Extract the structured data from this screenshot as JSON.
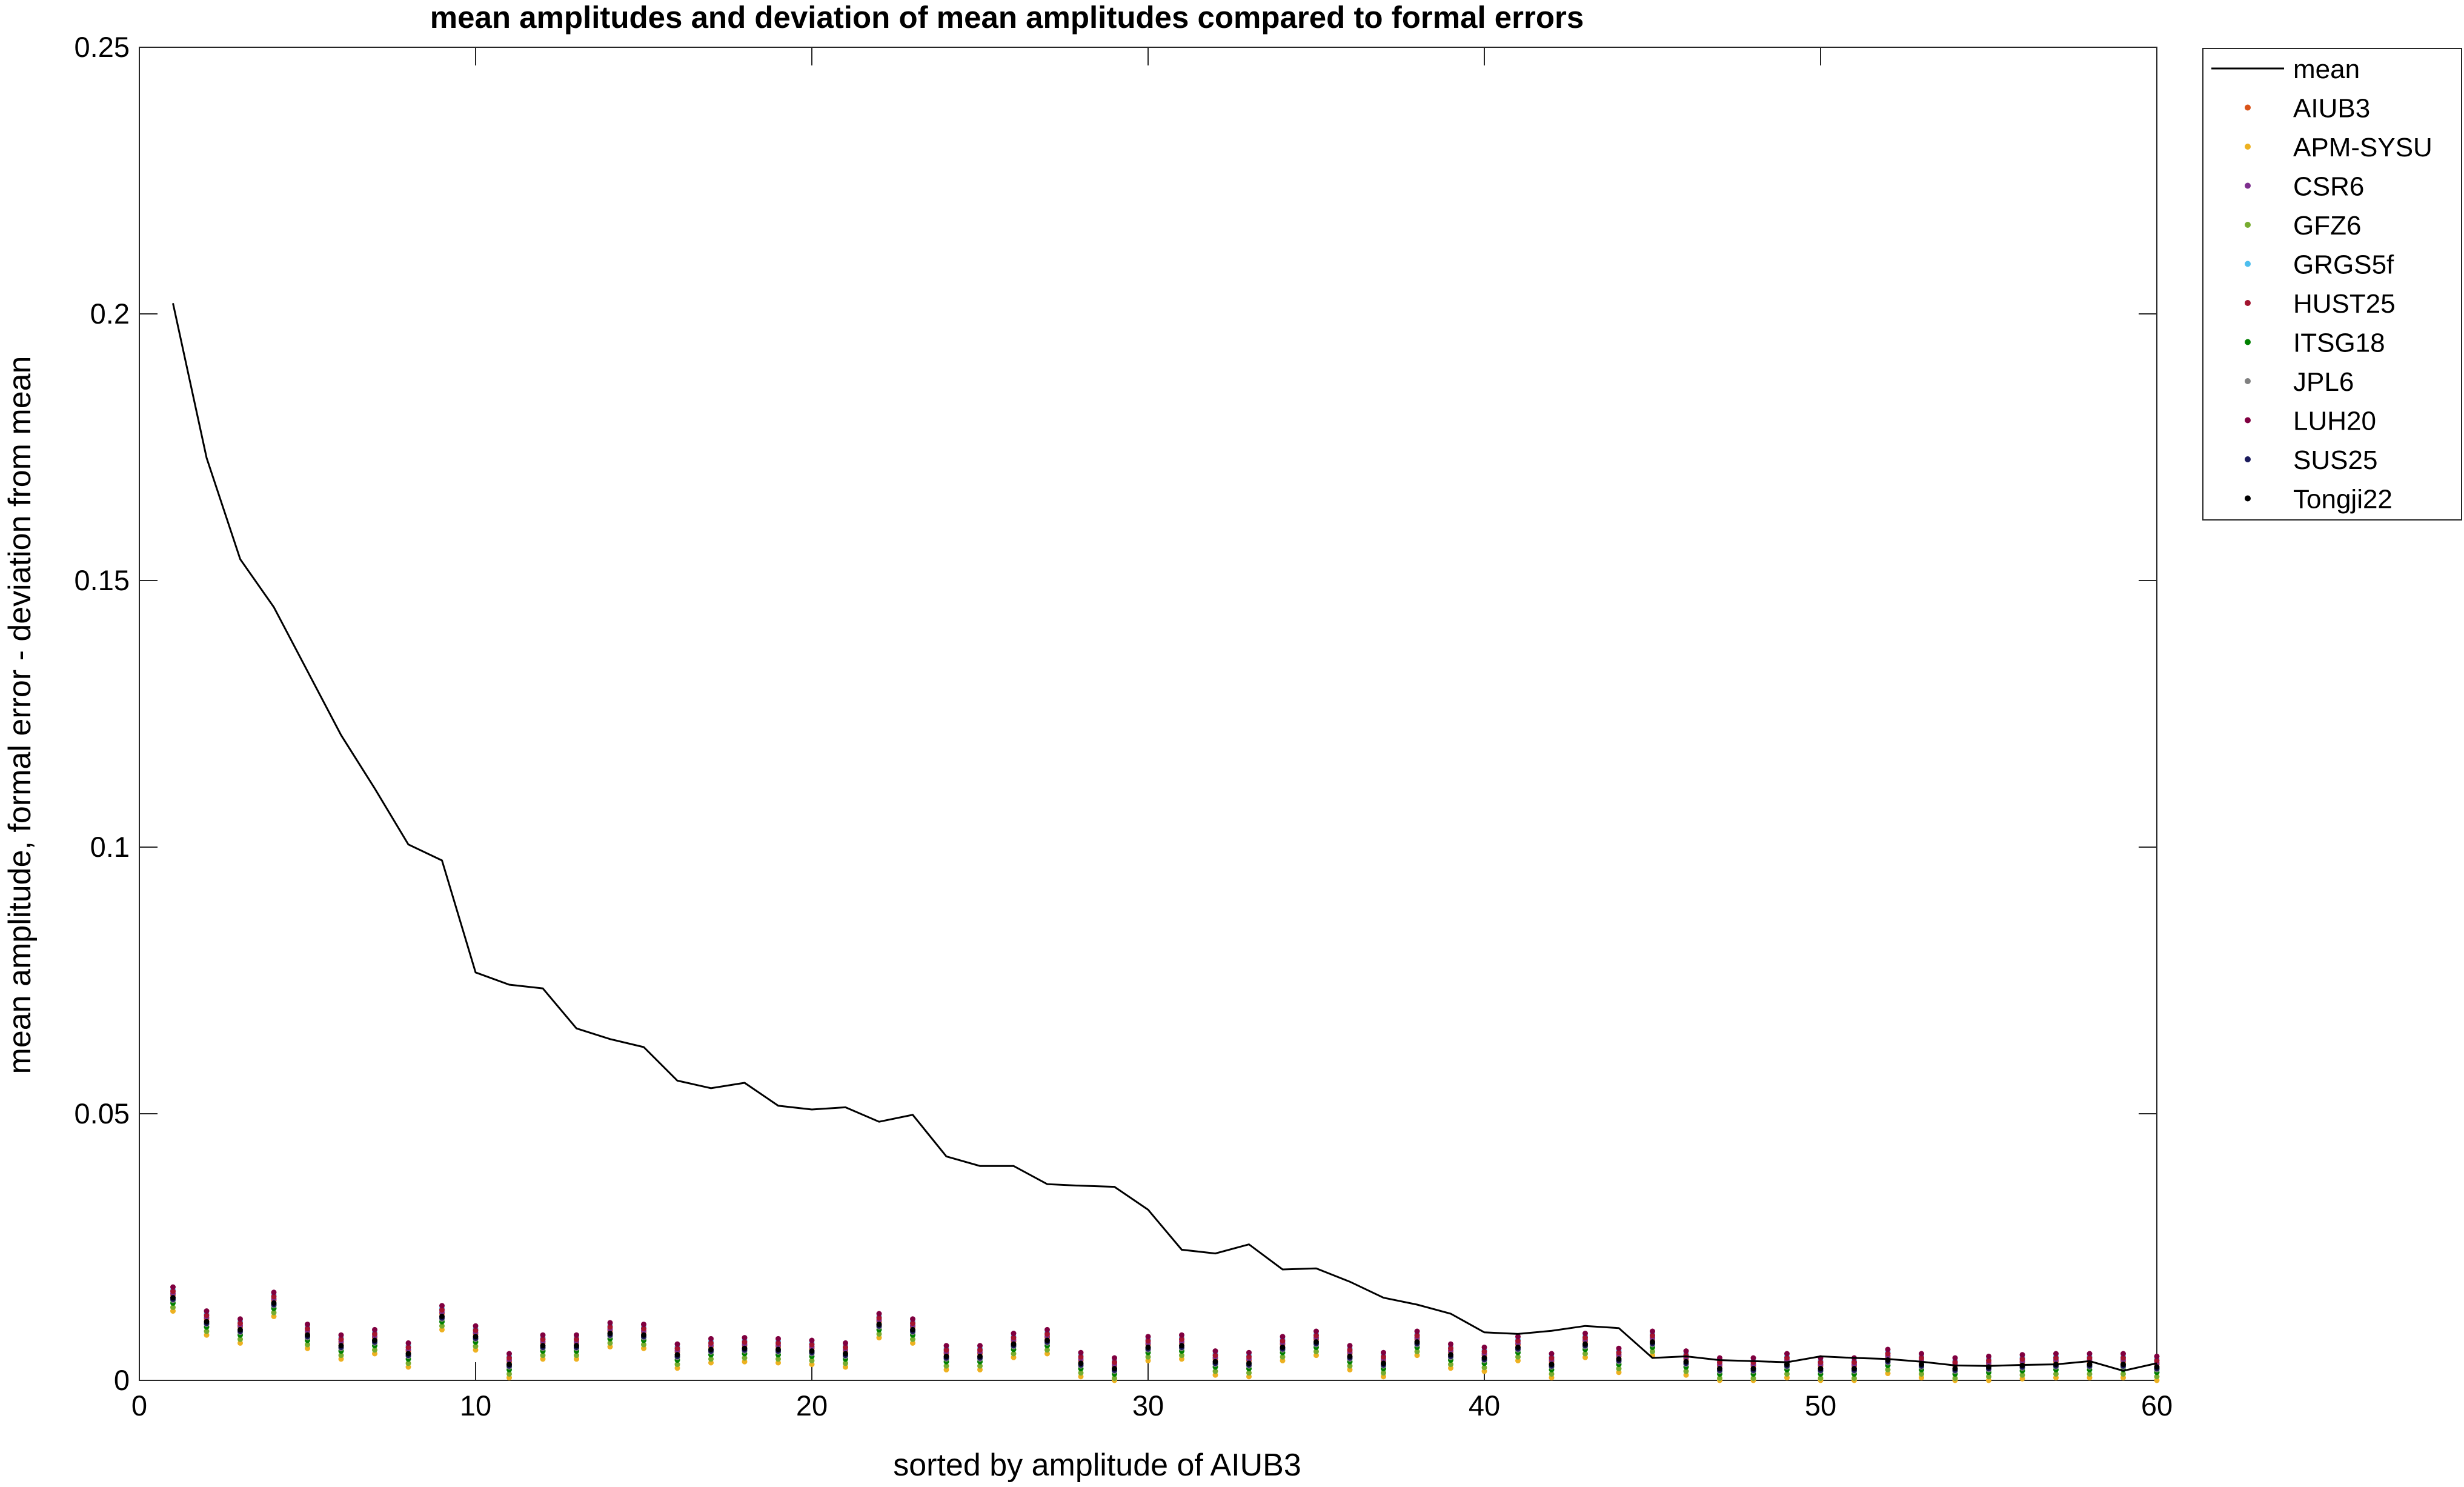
{
  "chart_data": {
    "type": "line",
    "title": "mean amplitudes and deviation of mean amplitudes compared to formal errors",
    "xlabel": "sorted by amplitude of AIUB3",
    "ylabel": "mean amplitude, formal error - deviation from mean",
    "xlim": [
      0,
      60
    ],
    "ylim": [
      0,
      0.25
    ],
    "xticks": [
      0,
      10,
      20,
      30,
      40,
      50,
      60
    ],
    "xtick_labels": [
      "0",
      "10",
      "20",
      "30",
      "40",
      "50",
      "60"
    ],
    "yticks": [
      0,
      0.05,
      0.1,
      0.15,
      0.2,
      0.25
    ],
    "ytick_labels": [
      "0",
      "0.05",
      "0.1",
      "0.15",
      "0.2",
      "0.25"
    ],
    "grid": false,
    "legend_position": "outside-top-right",
    "x": [
      1,
      2,
      3,
      4,
      5,
      6,
      7,
      8,
      9,
      10,
      11,
      12,
      13,
      14,
      15,
      16,
      17,
      18,
      19,
      20,
      21,
      22,
      23,
      24,
      25,
      26,
      27,
      28,
      29,
      30,
      31,
      32,
      33,
      34,
      35,
      36,
      37,
      38,
      39,
      40,
      41,
      42,
      43,
      44,
      45,
      46,
      47,
      48,
      49,
      50,
      51,
      52,
      53,
      54,
      55,
      56,
      57,
      58,
      59,
      60
    ],
    "mean_series": {
      "name": "mean",
      "color": "#000000",
      "values": [
        0.202,
        0.173,
        0.154,
        0.145,
        0.133,
        0.121,
        0.111,
        0.1005,
        0.0975,
        0.0765,
        0.0742,
        0.0735,
        0.066,
        0.064,
        0.0625,
        0.0562,
        0.0548,
        0.0558,
        0.0515,
        0.0508,
        0.0512,
        0.0485,
        0.0498,
        0.042,
        0.0402,
        0.0402,
        0.0368,
        0.0365,
        0.0363,
        0.032,
        0.0245,
        0.0238,
        0.0255,
        0.0208,
        0.021,
        0.0185,
        0.0155,
        0.0142,
        0.0125,
        0.009,
        0.0087,
        0.0093,
        0.0102,
        0.0098,
        0.0042,
        0.0045,
        0.0038,
        0.0036,
        0.0034,
        0.0045,
        0.0042,
        0.004,
        0.0035,
        0.0028,
        0.0027,
        0.0029,
        0.003,
        0.0036,
        0.0018,
        0.0032
      ]
    },
    "point_base": [
      0.0155,
      0.011,
      0.0095,
      0.0145,
      0.0085,
      0.0065,
      0.0075,
      0.005,
      0.012,
      0.0082,
      0.003,
      0.0065,
      0.0065,
      0.0088,
      0.0085,
      0.0048,
      0.0058,
      0.006,
      0.0058,
      0.0055,
      0.005,
      0.0105,
      0.0095,
      0.0045,
      0.0045,
      0.0068,
      0.0075,
      0.0032,
      0.0022,
      0.0062,
      0.0065,
      0.0035,
      0.0032,
      0.0062,
      0.0072,
      0.0045,
      0.0032,
      0.0072,
      0.0048,
      0.0042,
      0.0062,
      0.003,
      0.0068,
      0.004,
      0.0072,
      0.0035,
      0.0022,
      0.0022,
      0.003,
      0.0022,
      0.0022,
      0.0038,
      0.003,
      0.0022,
      0.0025,
      0.0028,
      0.003,
      0.003,
      0.003,
      0.0025
    ],
    "point_series": [
      {
        "name": "AIUB3",
        "color": "#D95319",
        "offset": 0.0005
      },
      {
        "name": "APM-SYSU",
        "color": "#EDB120",
        "offset": -0.0025
      },
      {
        "name": "CSR6",
        "color": "#7E2F8E",
        "offset": 0.0008
      },
      {
        "name": "GFZ6",
        "color": "#77AC30",
        "offset": -0.0018
      },
      {
        "name": "GRGS5f",
        "color": "#4DBEEE",
        "offset": 0.0015
      },
      {
        "name": "HUST25",
        "color": "#A2142F",
        "offset": 0.0012
      },
      {
        "name": "ITSG18",
        "color": "#008000",
        "offset": -0.001
      },
      {
        "name": "JPL6",
        "color": "#808080",
        "offset": -0.0005
      },
      {
        "name": "LUH20",
        "color": "#800040",
        "offset": 0.002
      },
      {
        "name": "SUS25",
        "color": "#1A1A5C",
        "offset": -0.0003
      },
      {
        "name": "Tongji22",
        "color": "#000000",
        "offset": 0.0
      }
    ]
  }
}
